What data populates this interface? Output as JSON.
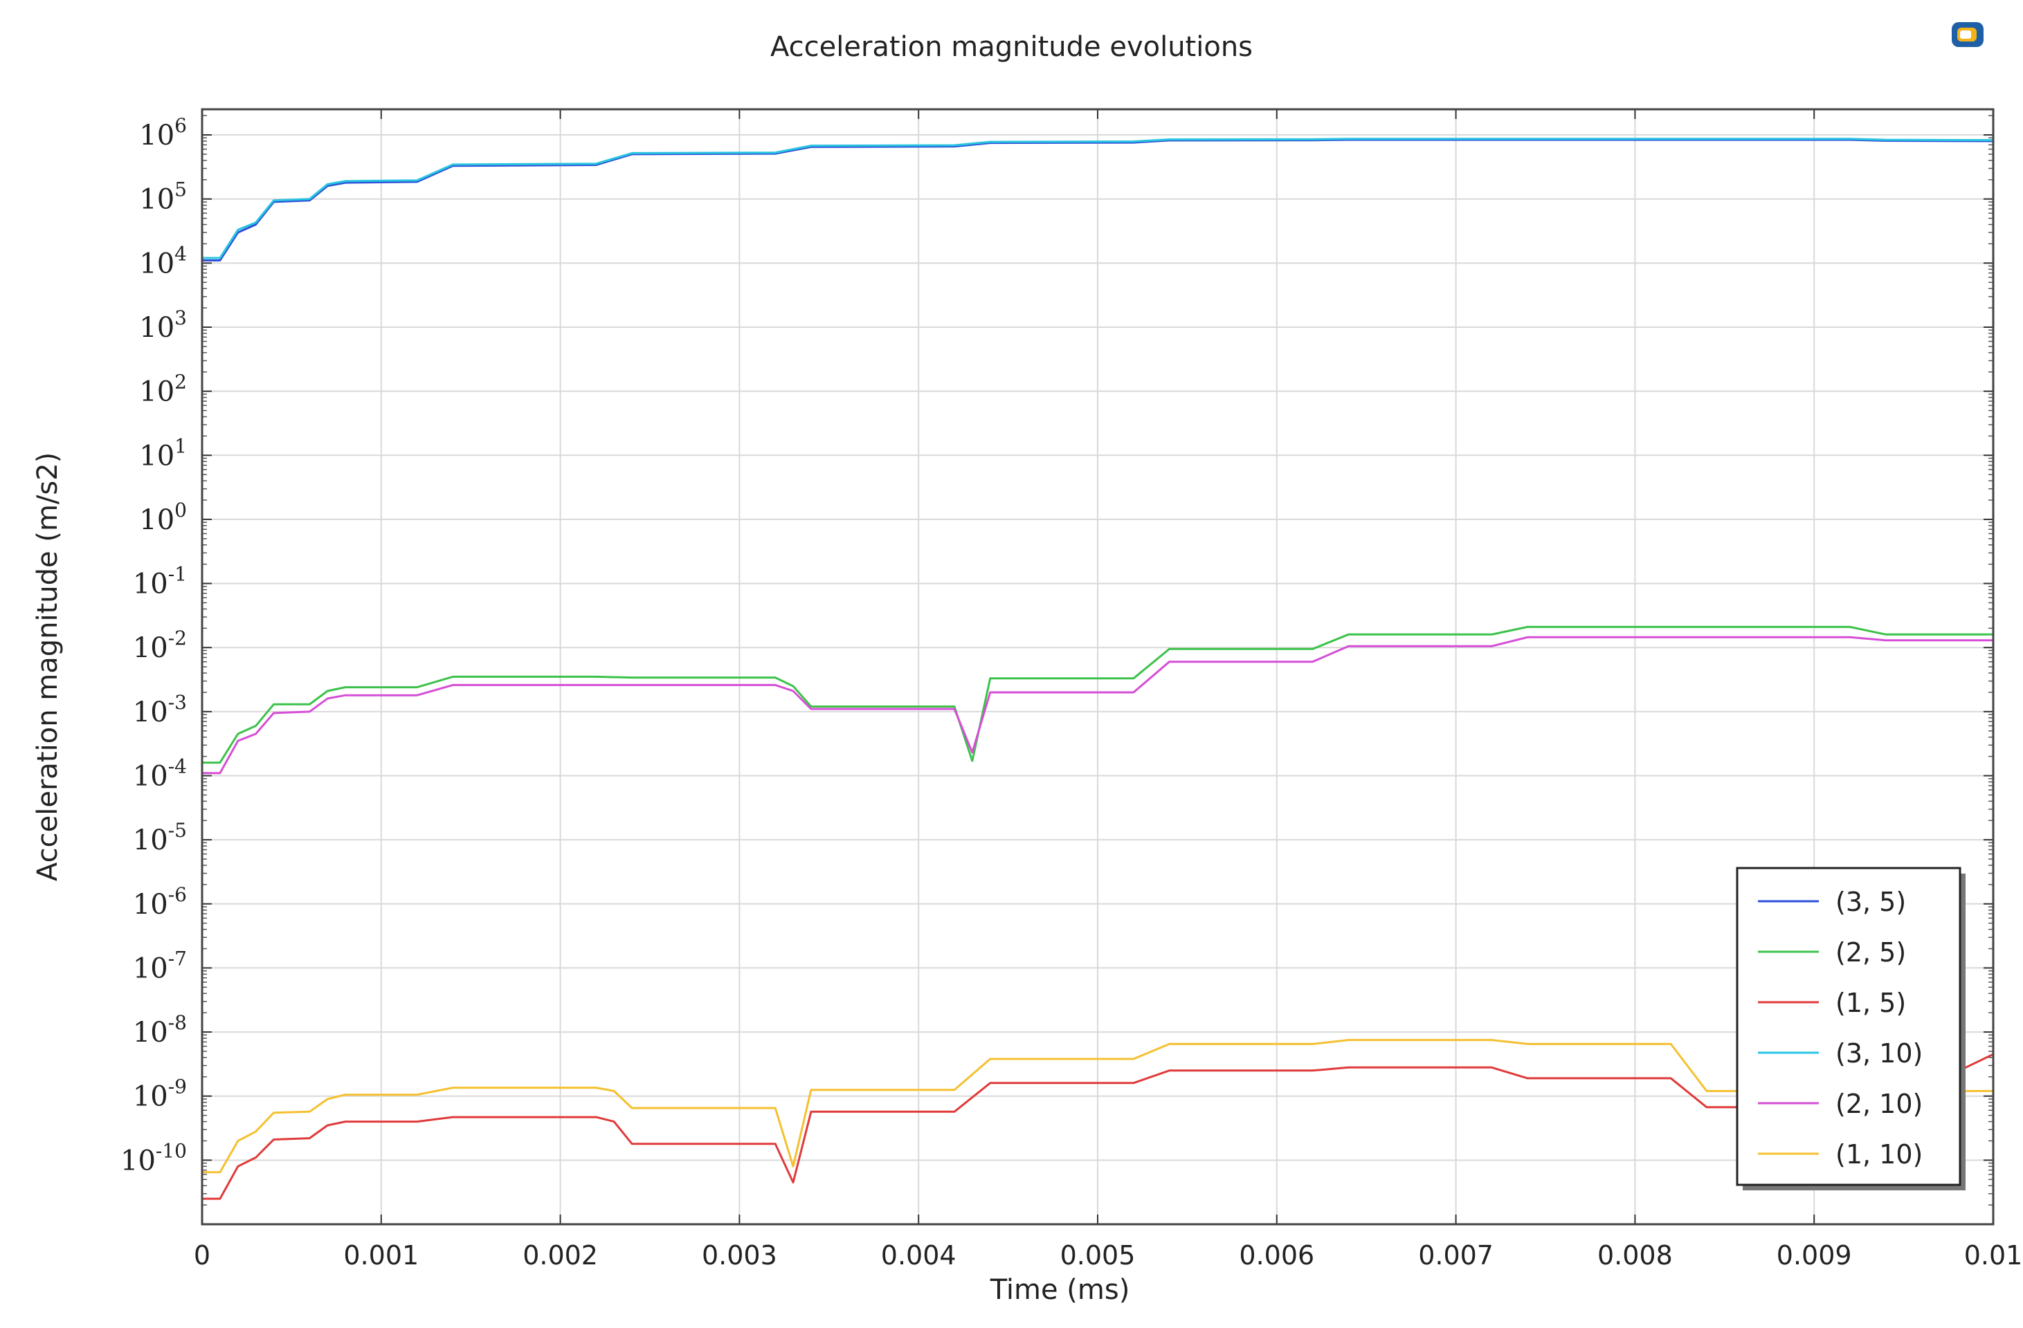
{
  "chart_data": {
    "type": "line",
    "title": "Acceleration magnitude evolutions",
    "xlabel": "Time (ms)",
    "ylabel": "Acceleration magnitude (m/s2)",
    "xlim": [
      0,
      0.01
    ],
    "ylim_exponent": [
      -11,
      6.4
    ],
    "yscale": "log",
    "grid": true,
    "legend_position": "bottom-right",
    "x_ticks": [
      "0",
      "0.001",
      "0.002",
      "0.003",
      "0.004",
      "0.005",
      "0.006",
      "0.007",
      "0.008",
      "0.009",
      "0.01"
    ],
    "y_tick_exponents": [
      "6",
      "5",
      "4",
      "3",
      "2",
      "1",
      "0",
      "-1",
      "-2",
      "-3",
      "-4",
      "-5",
      "-6",
      "-7",
      "-8",
      "-9",
      "-10"
    ],
    "y_tick_base": "10",
    "series": [
      {
        "name": "(3, 5)",
        "color": "#2b4fd8",
        "x": [
          0,
          0.0001,
          0.0002,
          0.0003,
          0.0004,
          0.0006,
          0.0007,
          0.0008,
          0.0012,
          0.0014,
          0.0022,
          0.0024,
          0.0032,
          0.0034,
          0.0042,
          0.0044,
          0.0052,
          0.0054,
          0.0062,
          0.0064,
          0.0072,
          0.0074,
          0.0092,
          0.0094,
          0.01
        ],
        "y": [
          11000,
          11000,
          30000,
          40000,
          90000,
          95000,
          160000,
          180000,
          185000,
          330000,
          340000,
          500000,
          510000,
          650000,
          660000,
          750000,
          760000,
          820000,
          825000,
          840000,
          840000,
          840000,
          840000,
          810000,
          800000
        ]
      },
      {
        "name": "(2, 5)",
        "color": "#3cc24a",
        "x": [
          0,
          0.0001,
          0.0002,
          0.0003,
          0.0004,
          0.0006,
          0.0007,
          0.0008,
          0.0012,
          0.0014,
          0.0022,
          0.0024,
          0.0032,
          0.0033,
          0.0034,
          0.0042,
          0.0043,
          0.0044,
          0.0052,
          0.0054,
          0.0062,
          0.0064,
          0.0072,
          0.0074,
          0.0092,
          0.0094,
          0.01
        ],
        "y": [
          0.00016,
          0.00016,
          0.00045,
          0.0006,
          0.0013,
          0.0013,
          0.0021,
          0.0024,
          0.0024,
          0.0035,
          0.0035,
          0.0034,
          0.0034,
          0.0025,
          0.0012,
          0.0012,
          0.00017,
          0.0033,
          0.0033,
          0.0095,
          0.0095,
          0.016,
          0.016,
          0.021,
          0.021,
          0.016,
          0.016
        ]
      },
      {
        "name": "(1, 5)",
        "color": "#e03a3a",
        "x": [
          0,
          0.0001,
          0.0002,
          0.0003,
          0.0004,
          0.0006,
          0.0007,
          0.0008,
          0.0012,
          0.0014,
          0.0022,
          0.0023,
          0.0024,
          0.0032,
          0.0033,
          0.0034,
          0.0042,
          0.0044,
          0.0052,
          0.0054,
          0.0062,
          0.0064,
          0.0072,
          0.0074,
          0.0082,
          0.0084,
          0.0092,
          0.0094,
          0.01
        ],
        "y": [
          2.5e-11,
          2.5e-11,
          8e-11,
          1.1e-10,
          2.1e-10,
          2.2e-10,
          3.5e-10,
          4e-10,
          4e-10,
          4.7e-10,
          4.7e-10,
          4e-10,
          1.8e-10,
          1.8e-10,
          4.5e-11,
          5.7e-10,
          5.7e-10,
          1.6e-09,
          1.6e-09,
          2.5e-09,
          2.5e-09,
          2.8e-09,
          2.8e-09,
          1.9e-09,
          1.9e-09,
          6.7e-10,
          6.7e-10,
          7e-10,
          4.5e-09
        ]
      },
      {
        "name": "(3, 10)",
        "color": "#29c4e0",
        "x": [
          0,
          0.0001,
          0.0002,
          0.0003,
          0.0004,
          0.0006,
          0.0007,
          0.0008,
          0.0012,
          0.0014,
          0.0022,
          0.0024,
          0.0032,
          0.0034,
          0.0042,
          0.0044,
          0.0052,
          0.0054,
          0.0062,
          0.0064,
          0.0072,
          0.0074,
          0.0092,
          0.0094,
          0.01
        ],
        "y": [
          12000,
          12000,
          33000,
          43000,
          95000,
          100000,
          170000,
          190000,
          195000,
          345000,
          355000,
          520000,
          530000,
          680000,
          690000,
          780000,
          790000,
          850000,
          855000,
          870000,
          870000,
          870000,
          870000,
          840000,
          830000
        ]
      },
      {
        "name": "(2, 10)",
        "color": "#d64ed6",
        "x": [
          0,
          0.0001,
          0.0002,
          0.0003,
          0.0004,
          0.0006,
          0.0007,
          0.0008,
          0.0012,
          0.0014,
          0.0022,
          0.0024,
          0.0032,
          0.0033,
          0.0034,
          0.0042,
          0.0043,
          0.0044,
          0.0052,
          0.0054,
          0.0062,
          0.0064,
          0.0072,
          0.0074,
          0.0092,
          0.0094,
          0.01
        ],
        "y": [
          0.00011,
          0.00011,
          0.00035,
          0.00045,
          0.00095,
          0.001,
          0.0016,
          0.0018,
          0.0018,
          0.0026,
          0.0026,
          0.0026,
          0.0026,
          0.0021,
          0.0011,
          0.0011,
          0.00023,
          0.002,
          0.002,
          0.006,
          0.006,
          0.0105,
          0.0105,
          0.0145,
          0.0145,
          0.013,
          0.013
        ]
      },
      {
        "name": "(1, 10)",
        "color": "#f5c030",
        "x": [
          0,
          0.0001,
          0.0002,
          0.0003,
          0.0004,
          0.0006,
          0.0007,
          0.0008,
          0.0012,
          0.0014,
          0.0022,
          0.0023,
          0.0024,
          0.0032,
          0.0033,
          0.0034,
          0.0042,
          0.0044,
          0.0052,
          0.0054,
          0.0062,
          0.0064,
          0.0072,
          0.0074,
          0.0082,
          0.0084,
          0.0092,
          0.0094,
          0.01
        ],
        "y": [
          6.5e-11,
          6.5e-11,
          2e-10,
          2.8e-10,
          5.5e-10,
          5.7e-10,
          9e-10,
          1.05e-09,
          1.05e-09,
          1.35e-09,
          1.35e-09,
          1.2e-09,
          6.5e-10,
          6.5e-10,
          8e-11,
          1.25e-09,
          1.25e-09,
          3.8e-09,
          3.8e-09,
          6.5e-09,
          6.5e-09,
          7.5e-09,
          7.5e-09,
          6.5e-09,
          6.5e-09,
          1.2e-09,
          1.2e-09,
          1.2e-09,
          1.2e-09
        ]
      }
    ]
  }
}
